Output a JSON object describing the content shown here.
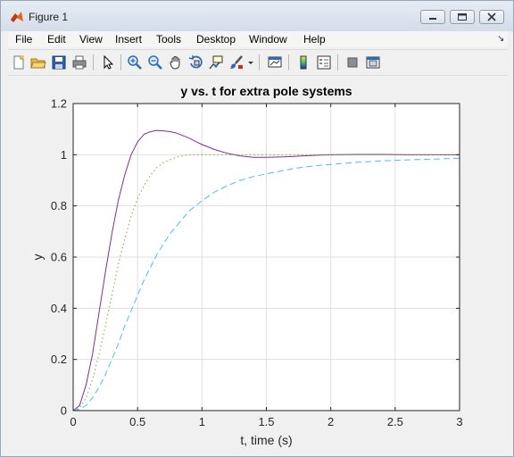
{
  "window": {
    "title": "Figure 1"
  },
  "menu": {
    "items": [
      "File",
      "Edit",
      "View",
      "Insert",
      "Tools",
      "Desktop",
      "Window",
      "Help"
    ],
    "overflow_icon": "arrow-icon"
  },
  "toolbar": {
    "buttons": [
      "new-figure-icon",
      "open-file-icon",
      "save-icon",
      "print-icon",
      "pointer-icon",
      "zoom-in-icon",
      "zoom-out-icon",
      "pan-icon",
      "rotate-3d-icon",
      "data-cursor-icon",
      "brush-icon",
      "dropdown-arrow-icon",
      "link-plot-icon",
      "colorbar-icon",
      "legend-icon",
      "hide-plot-tools-icon",
      "show-plot-tools-icon"
    ]
  },
  "chart_data": {
    "type": "line",
    "title": "y vs. t for extra pole systems",
    "xlabel": "t, time (s)",
    "ylabel": "y",
    "xlim": [
      0,
      3
    ],
    "ylim": [
      0,
      1.2
    ],
    "xticks": [
      "0",
      "0.5",
      "1",
      "1.5",
      "2",
      "2.5",
      "3"
    ],
    "yticks": [
      "0",
      "0.2",
      "0.4",
      "0.6",
      "0.8",
      "1",
      "1.2"
    ],
    "grid": true,
    "legend": "none",
    "x": [
      0,
      0.05,
      0.1,
      0.15,
      0.2,
      0.25,
      0.3,
      0.35,
      0.4,
      0.45,
      0.5,
      0.55,
      0.6,
      0.65,
      0.7,
      0.75,
      0.8,
      0.85,
      0.9,
      0.95,
      1.0,
      1.1,
      1.2,
      1.3,
      1.4,
      1.5,
      1.6,
      1.7,
      1.8,
      1.9,
      2.0,
      2.2,
      2.4,
      2.6,
      2.8,
      3.0
    ],
    "series": [
      {
        "color": "#7e2f8e",
        "style": "solid",
        "values": [
          0,
          0.02,
          0.1,
          0.22,
          0.38,
          0.54,
          0.69,
          0.82,
          0.92,
          1.0,
          1.05,
          1.08,
          1.09,
          1.095,
          1.093,
          1.09,
          1.085,
          1.075,
          1.065,
          1.052,
          1.04,
          1.02,
          1.005,
          0.995,
          0.99,
          0.99,
          0.991,
          0.993,
          0.996,
          0.998,
          1.0,
          1.001,
          1.001,
          1.0,
          1.0,
          1.0
        ]
      },
      {
        "color": "#77ac30",
        "style": "dotted",
        "values": [
          0,
          0.01,
          0.05,
          0.12,
          0.22,
          0.33,
          0.45,
          0.57,
          0.67,
          0.76,
          0.83,
          0.88,
          0.92,
          0.95,
          0.97,
          0.98,
          0.99,
          0.995,
          1.0,
          1.0,
          1.0,
          1.0,
          1.0,
          1.0,
          1.0,
          1.0,
          1.0,
          1.0,
          1.0,
          1.0,
          1.0,
          1.0,
          1.0,
          1.0,
          1.0,
          1.0
        ]
      },
      {
        "color": "#4dbeee",
        "style": "dashed",
        "values": [
          0,
          0.005,
          0.02,
          0.05,
          0.09,
          0.14,
          0.2,
          0.26,
          0.33,
          0.39,
          0.45,
          0.51,
          0.56,
          0.61,
          0.65,
          0.69,
          0.72,
          0.75,
          0.78,
          0.8,
          0.82,
          0.855,
          0.88,
          0.9,
          0.915,
          0.925,
          0.935,
          0.945,
          0.952,
          0.958,
          0.962,
          0.97,
          0.976,
          0.98,
          0.983,
          0.986
        ]
      }
    ]
  }
}
